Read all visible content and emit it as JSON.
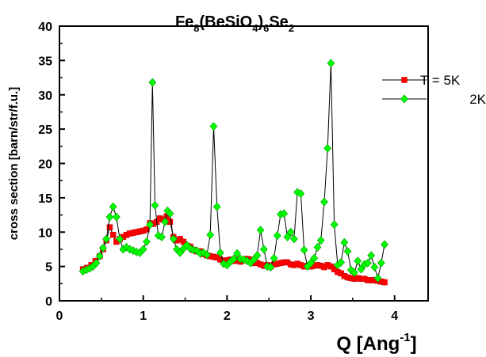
{
  "chart_data": {
    "type": "scatter",
    "title": {
      "parts": [
        {
          "text": "Fe",
          "sub": false
        },
        {
          "text": "8",
          "sub": true
        },
        {
          "text": "(BeSiO",
          "sub": false
        },
        {
          "text": "4",
          "sub": true
        },
        {
          "text": ")",
          "sub": false
        },
        {
          "text": "6",
          "sub": true
        },
        {
          "text": "Se",
          "sub": false
        },
        {
          "text": "2",
          "sub": true
        }
      ]
    },
    "xlabel": {
      "base": "Q [Ang",
      "sup": "-1",
      "end": "]"
    },
    "ylabel": "cross section [barn/str/f.u.]",
    "xlim": [
      0,
      4.4
    ],
    "ylim": [
      0,
      40
    ],
    "xticks": [
      0,
      1,
      2,
      3,
      4
    ],
    "yticks": [
      0,
      5,
      10,
      15,
      20,
      25,
      30,
      35,
      40
    ],
    "grid": false,
    "legend_position": "top-right",
    "series": [
      {
        "name": "T = 5K",
        "marker": "square",
        "color": "#ff0000",
        "points": [
          [
            0.28,
            4.6
          ],
          [
            0.33,
            4.8
          ],
          [
            0.38,
            5.2
          ],
          [
            0.43,
            5.8
          ],
          [
            0.48,
            6.5
          ],
          [
            0.52,
            7.5
          ],
          [
            0.56,
            8.8
          ],
          [
            0.6,
            10.7
          ],
          [
            0.64,
            9.6
          ],
          [
            0.68,
            8.6
          ],
          [
            0.72,
            9.0
          ],
          [
            0.76,
            9.3
          ],
          [
            0.8,
            9.6
          ],
          [
            0.84,
            9.8
          ],
          [
            0.88,
            9.9
          ],
          [
            0.92,
            10.0
          ],
          [
            0.96,
            10.1
          ],
          [
            1.0,
            10.2
          ],
          [
            1.04,
            10.4
          ],
          [
            1.08,
            11.3
          ],
          [
            1.12,
            11.2
          ],
          [
            1.16,
            11.5
          ],
          [
            1.2,
            12.0
          ],
          [
            1.24,
            11.8
          ],
          [
            1.28,
            12.3
          ],
          [
            1.32,
            11.5
          ],
          [
            1.36,
            9.3
          ],
          [
            1.4,
            8.8
          ],
          [
            1.44,
            9.0
          ],
          [
            1.48,
            8.6
          ],
          [
            1.52,
            8.0
          ],
          [
            1.56,
            7.9
          ],
          [
            1.6,
            7.4
          ],
          [
            1.64,
            7.2
          ],
          [
            1.68,
            7.2
          ],
          [
            1.72,
            6.8
          ],
          [
            1.76,
            6.6
          ],
          [
            1.8,
            6.5
          ],
          [
            1.84,
            6.4
          ],
          [
            1.88,
            6.3
          ],
          [
            1.92,
            6.0
          ],
          [
            1.96,
            5.8
          ],
          [
            2.0,
            5.9
          ],
          [
            2.04,
            6.0
          ],
          [
            2.08,
            5.8
          ],
          [
            2.12,
            5.9
          ],
          [
            2.16,
            5.7
          ],
          [
            2.2,
            5.9
          ],
          [
            2.24,
            6.1
          ],
          [
            2.28,
            6.0
          ],
          [
            2.32,
            5.5
          ],
          [
            2.36,
            5.5
          ],
          [
            2.4,
            5.3
          ],
          [
            2.44,
            5.1
          ],
          [
            2.48,
            5.2
          ],
          [
            2.52,
            5.0
          ],
          [
            2.56,
            5.3
          ],
          [
            2.6,
            5.4
          ],
          [
            2.64,
            5.5
          ],
          [
            2.68,
            5.6
          ],
          [
            2.72,
            5.6
          ],
          [
            2.76,
            5.3
          ],
          [
            2.8,
            5.2
          ],
          [
            2.84,
            5.4
          ],
          [
            2.88,
            5.2
          ],
          [
            2.92,
            5.0
          ],
          [
            2.96,
            5.1
          ],
          [
            3.0,
            5.0
          ],
          [
            3.04,
            5.1
          ],
          [
            3.08,
            5.2
          ],
          [
            3.12,
            5.1
          ],
          [
            3.16,
            4.9
          ],
          [
            3.2,
            5.2
          ],
          [
            3.24,
            5.0
          ],
          [
            3.28,
            4.6
          ],
          [
            3.32,
            4.2
          ],
          [
            3.36,
            4.0
          ],
          [
            3.4,
            3.6
          ],
          [
            3.44,
            3.4
          ],
          [
            3.48,
            3.3
          ],
          [
            3.52,
            3.2
          ],
          [
            3.56,
            3.3
          ],
          [
            3.6,
            3.2
          ],
          [
            3.64,
            3.2
          ],
          [
            3.68,
            3.0
          ],
          [
            3.72,
            3.0
          ],
          [
            3.76,
            3.0
          ],
          [
            3.8,
            2.9
          ],
          [
            3.84,
            2.8
          ],
          [
            3.88,
            2.7
          ]
        ]
      },
      {
        "name": "2K",
        "marker": "diamond",
        "color": "#00ff00",
        "points": [
          [
            0.28,
            4.3
          ],
          [
            0.32,
            4.5
          ],
          [
            0.36,
            4.7
          ],
          [
            0.4,
            5.0
          ],
          [
            0.44,
            5.5
          ],
          [
            0.48,
            6.5
          ],
          [
            0.52,
            7.7
          ],
          [
            0.56,
            9.0
          ],
          [
            0.6,
            12.2
          ],
          [
            0.64,
            13.7
          ],
          [
            0.68,
            12.2
          ],
          [
            0.72,
            9.0
          ],
          [
            0.76,
            7.5
          ],
          [
            0.8,
            7.8
          ],
          [
            0.84,
            7.5
          ],
          [
            0.88,
            7.3
          ],
          [
            0.92,
            7.1
          ],
          [
            0.96,
            7.0
          ],
          [
            1.0,
            7.5
          ],
          [
            1.04,
            8.6
          ],
          [
            1.08,
            11.1
          ],
          [
            1.11,
            31.8
          ],
          [
            1.14,
            13.9
          ],
          [
            1.18,
            9.5
          ],
          [
            1.22,
            9.3
          ],
          [
            1.26,
            11.5
          ],
          [
            1.29,
            13.1
          ],
          [
            1.32,
            12.7
          ],
          [
            1.36,
            9.0
          ],
          [
            1.4,
            7.5
          ],
          [
            1.44,
            7.0
          ],
          [
            1.48,
            7.6
          ],
          [
            1.52,
            8.1
          ],
          [
            1.56,
            7.6
          ],
          [
            1.6,
            7.4
          ],
          [
            1.64,
            7.3
          ],
          [
            1.68,
            6.9
          ],
          [
            1.72,
            7.0
          ],
          [
            1.76,
            6.7
          ],
          [
            1.8,
            9.6
          ],
          [
            1.84,
            25.4
          ],
          [
            1.88,
            13.7
          ],
          [
            1.92,
            7.0
          ],
          [
            1.96,
            5.4
          ],
          [
            2.0,
            5.2
          ],
          [
            2.04,
            5.7
          ],
          [
            2.08,
            6.1
          ],
          [
            2.12,
            6.9
          ],
          [
            2.16,
            6.1
          ],
          [
            2.2,
            6.0
          ],
          [
            2.24,
            5.8
          ],
          [
            2.28,
            5.5
          ],
          [
            2.32,
            6.0
          ],
          [
            2.36,
            6.6
          ],
          [
            2.4,
            10.3
          ],
          [
            2.44,
            7.5
          ],
          [
            2.48,
            5.0
          ],
          [
            2.52,
            4.9
          ],
          [
            2.56,
            6.2
          ],
          [
            2.6,
            9.5
          ],
          [
            2.64,
            12.6
          ],
          [
            2.68,
            12.7
          ],
          [
            2.72,
            9.3
          ],
          [
            2.76,
            10.0
          ],
          [
            2.8,
            9.0
          ],
          [
            2.84,
            15.8
          ],
          [
            2.88,
            15.6
          ],
          [
            2.92,
            7.4
          ],
          [
            2.96,
            5.0
          ],
          [
            3.0,
            5.5
          ],
          [
            3.04,
            6.2
          ],
          [
            3.08,
            7.8
          ],
          [
            3.12,
            8.8
          ],
          [
            3.16,
            14.4
          ],
          [
            3.2,
            22.2
          ],
          [
            3.24,
            34.6
          ],
          [
            3.28,
            11.1
          ],
          [
            3.32,
            5.2
          ],
          [
            3.36,
            5.6
          ],
          [
            3.4,
            8.5
          ],
          [
            3.44,
            7.2
          ],
          [
            3.48,
            4.5
          ],
          [
            3.52,
            4.1
          ],
          [
            3.56,
            5.8
          ],
          [
            3.6,
            4.6
          ],
          [
            3.64,
            5.3
          ],
          [
            3.68,
            5.5
          ],
          [
            3.72,
            6.6
          ],
          [
            3.76,
            4.9
          ],
          [
            3.8,
            3.3
          ],
          [
            3.84,
            5.5
          ],
          [
            3.88,
            8.2
          ]
        ]
      }
    ]
  }
}
